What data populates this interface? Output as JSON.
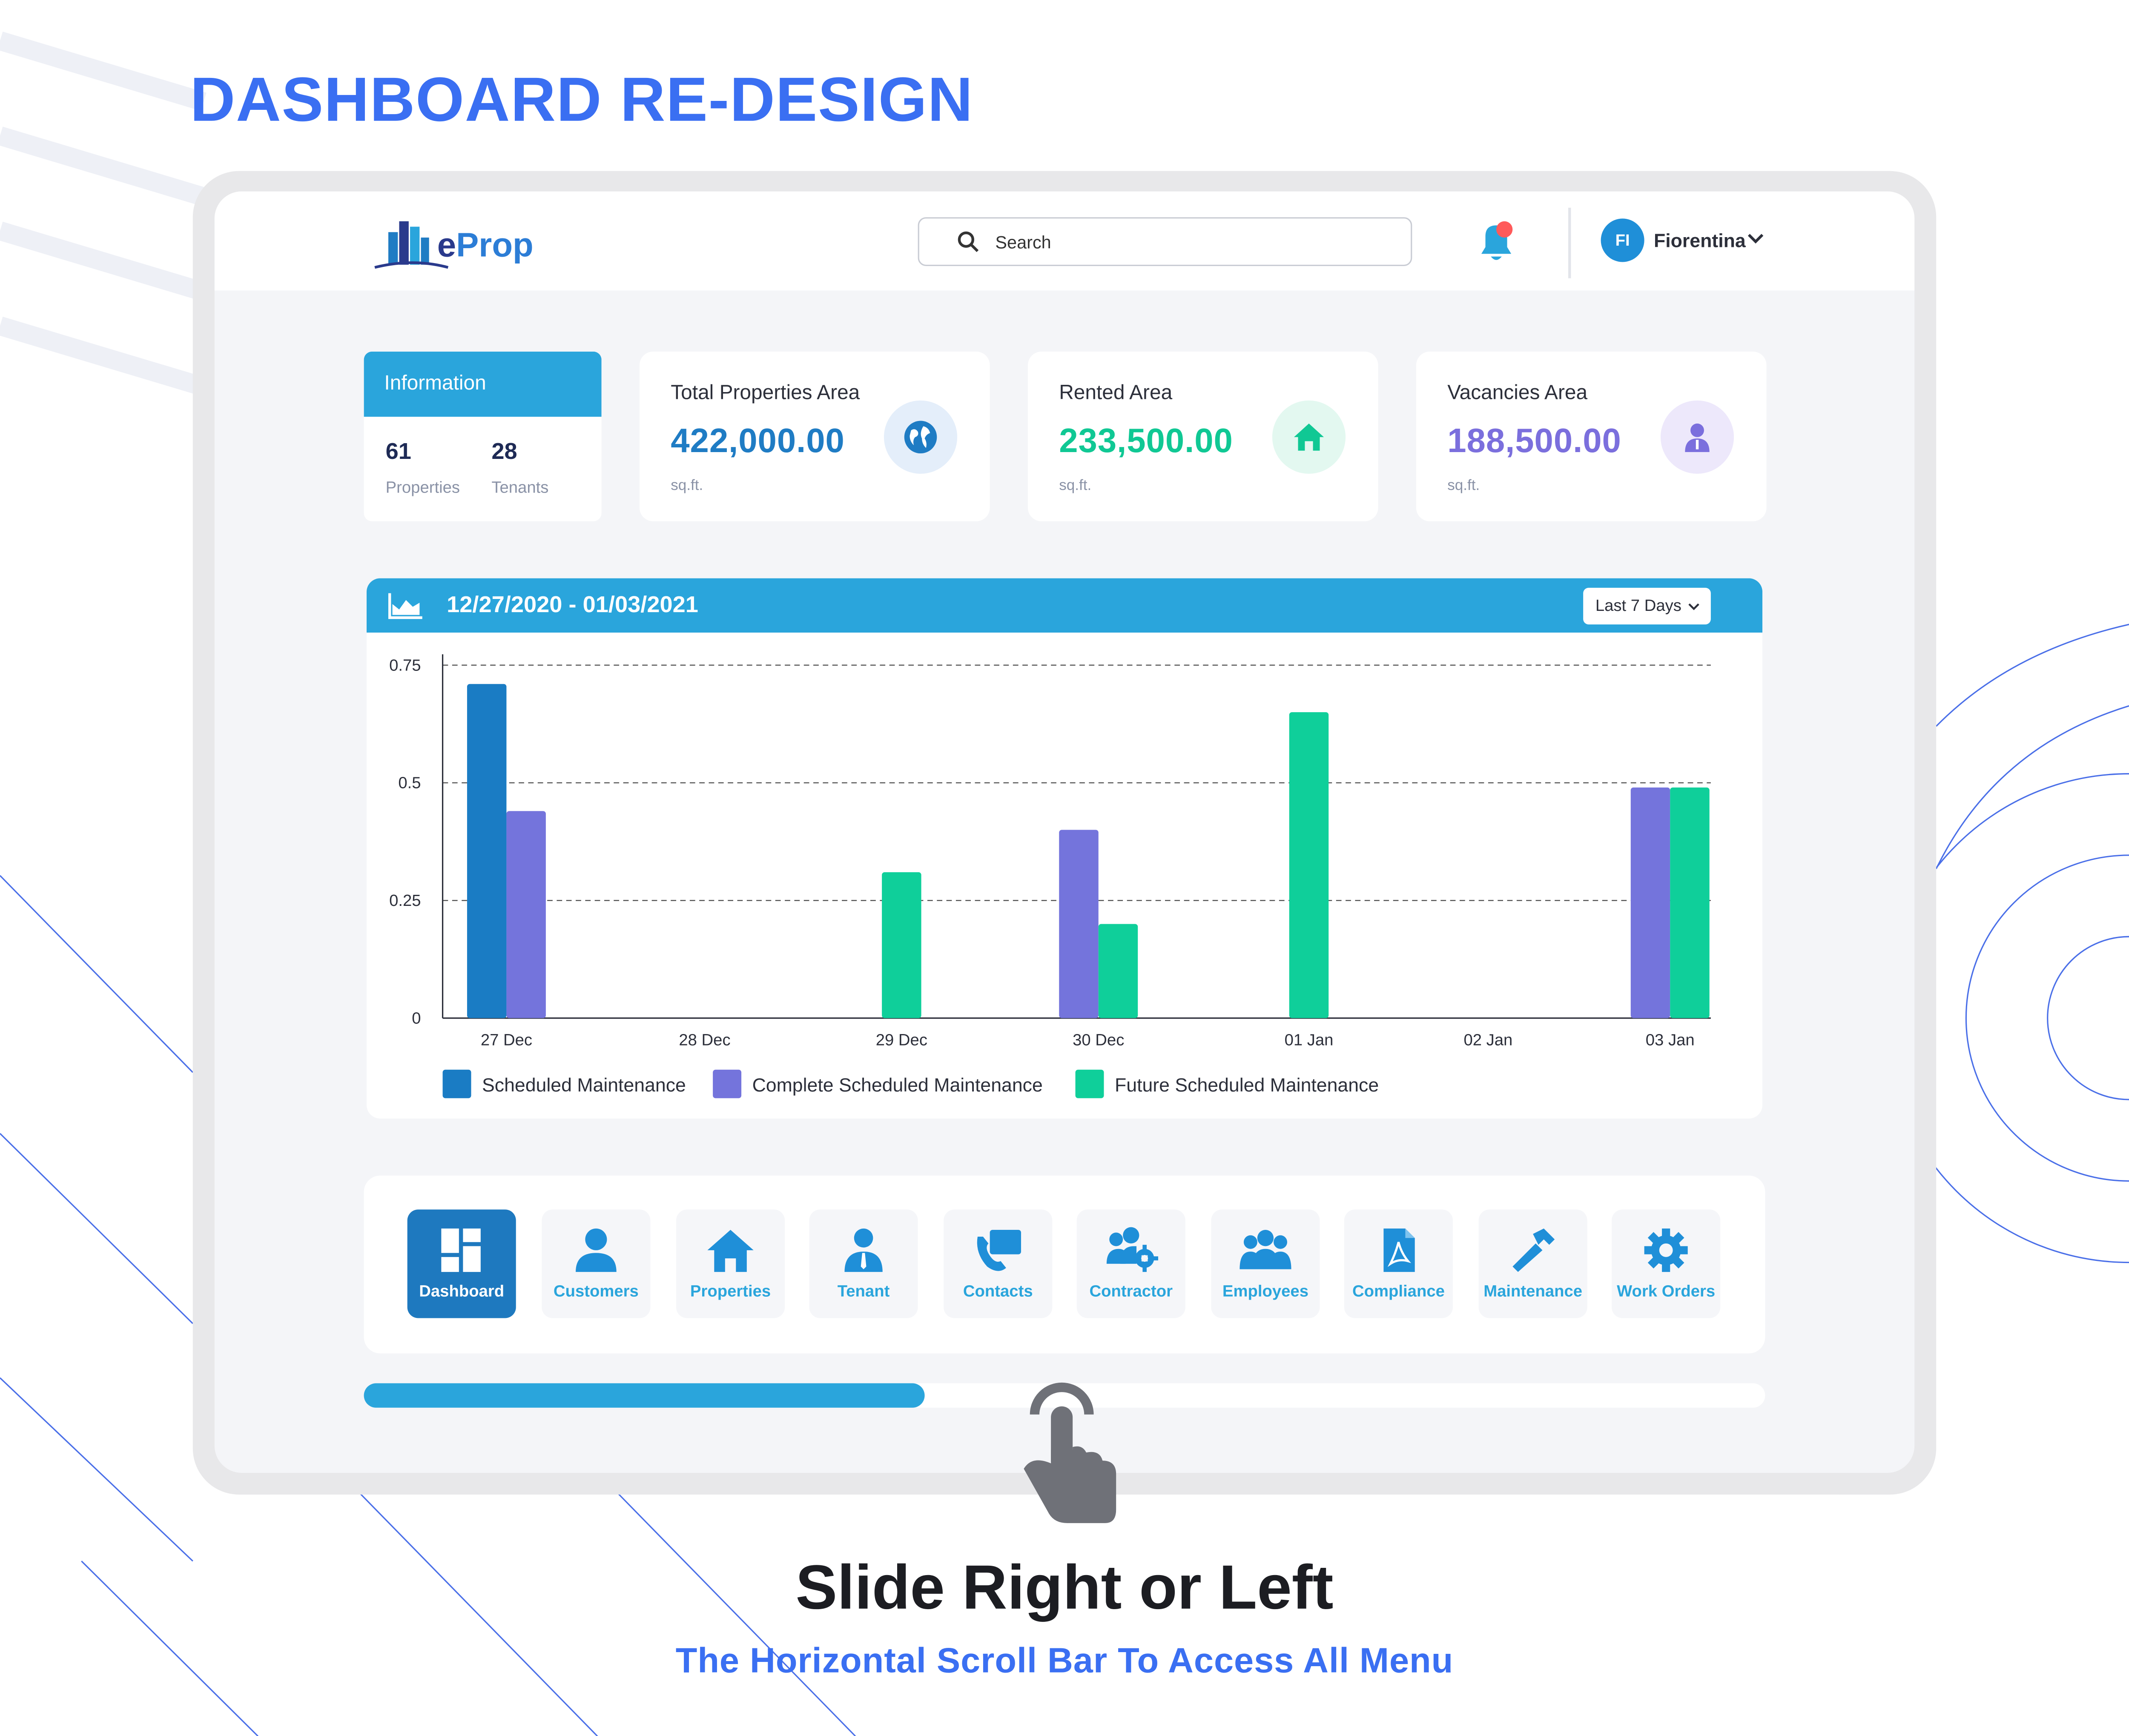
{
  "headline": "DASHBOARD RE-DESIGN",
  "header": {
    "brand": {
      "prefix": "e",
      "name": "Prop"
    },
    "search_placeholder": "Search",
    "user": {
      "initials": "FI",
      "name": "Fiorentina"
    }
  },
  "info_card": {
    "title": "Information",
    "properties_count": "61",
    "properties_label": "Properties",
    "tenants_count": "28",
    "tenants_label": "Tenants"
  },
  "stats": [
    {
      "title": "Total Properties Area",
      "value": "422,000.00",
      "unit": "sq.ft.",
      "color": "#1f7cc4",
      "icon": "globe-icon"
    },
    {
      "title": "Rented Area",
      "value": "233,500.00",
      "unit": "sq.ft.",
      "color": "#10c894",
      "icon": "home-icon"
    },
    {
      "title": "Vacancies Area",
      "value": "188,500.00",
      "unit": "sq.ft.",
      "color": "#7b6fdd",
      "icon": "person-icon"
    }
  ],
  "chart_panel": {
    "date_range": "12/27/2020 - 01/03/2021",
    "range_option": "Last 7 Days"
  },
  "chart_data": {
    "type": "bar",
    "categories": [
      "27 Dec",
      "28 Dec",
      "29 Dec",
      "30 Dec",
      "01 Jan",
      "02 Jan",
      "03 Jan"
    ],
    "series": [
      {
        "name": "Scheduled Maintenance",
        "color": "#1a7cc4",
        "values": [
          0.71,
          0,
          0,
          0,
          0,
          0,
          0
        ]
      },
      {
        "name": "Complete Scheduled Maintenance",
        "color": "#7474dc",
        "values": [
          0.44,
          0,
          0,
          0.4,
          0,
          0,
          0.49
        ]
      },
      {
        "name": "Future Scheduled Maintenance",
        "color": "#0fcf9a",
        "values": [
          0,
          0,
          0.31,
          0.2,
          0.65,
          0,
          0.49
        ]
      }
    ],
    "yticks": [
      "0",
      "0.25",
      "0.5",
      "0.75"
    ],
    "ylim": [
      0,
      0.75
    ],
    "grid": true,
    "legend_position": "bottom-left"
  },
  "menu": {
    "items": [
      {
        "label": "Dashboard",
        "icon": "dashboard-icon"
      },
      {
        "label": "Customers",
        "icon": "person-icon"
      },
      {
        "label": "Properties",
        "icon": "home-icon"
      },
      {
        "label": "Tenant",
        "icon": "tenant-icon"
      },
      {
        "label": "Contacts",
        "icon": "contacts-icon"
      },
      {
        "label": "Contractor",
        "icon": "contractor-icon"
      },
      {
        "label": "Employees",
        "icon": "employees-icon"
      },
      {
        "label": "Compliance",
        "icon": "pdf-document-icon"
      },
      {
        "label": "Maintenance",
        "icon": "hammer-icon"
      },
      {
        "label": "Work Orders",
        "icon": "gear-icon"
      }
    ],
    "active_index": 0,
    "scroll_position": 0.4
  },
  "cta": {
    "title": "Slide Right or Left",
    "subtitle": "The Horizontal Scroll Bar To Access All Menu"
  },
  "colors": {
    "accent": "#2aa5dc",
    "headline": "#3a6ff2"
  }
}
